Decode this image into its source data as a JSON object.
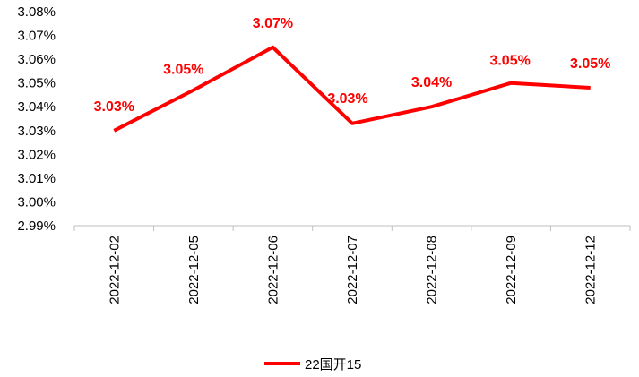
{
  "chart_data": {
    "type": "line",
    "categories": [
      "2022-12-02",
      "2022-12-05",
      "2022-12-06",
      "2022-12-07",
      "2022-12-08",
      "2022-12-09",
      "2022-12-12"
    ],
    "series": [
      {
        "name": "22国开15",
        "color": "#ff0000",
        "values": [
          3.03,
          3.047,
          3.065,
          3.033,
          3.04,
          3.05,
          3.048
        ],
        "data_labels": [
          "3.03%",
          "3.05%",
          "3.07%",
          "3.03%",
          "3.04%",
          "3.05%",
          "3.05%"
        ]
      }
    ],
    "yticks": [
      "3.08%",
      "3.07%",
      "3.06%",
      "3.05%",
      "3.04%",
      "3.03%",
      "3.02%",
      "3.01%",
      "3.00%",
      "2.99%"
    ],
    "ylim": [
      2.99,
      3.08
    ],
    "ystep": 0.01,
    "grid": false,
    "legend_position": "bottom"
  }
}
